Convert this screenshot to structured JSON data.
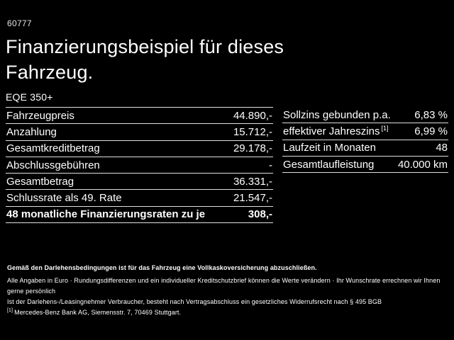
{
  "page": {
    "ref_number": "60777",
    "title_line1": "Finanzierungsbeispiel für dieses",
    "title_line2": "Fahrzeug.",
    "model": "EQE 350+"
  },
  "finance_table": {
    "rows": [
      {
        "label": "Fahrzeugpreis",
        "value": "44.890,-"
      },
      {
        "label": "Anzahlung",
        "value": "15.712,-"
      },
      {
        "label": "Gesamtkreditbetrag",
        "value": "29.178,-"
      },
      {
        "label": "Abschlussgebühren",
        "value": "-"
      },
      {
        "label": "Gesamtbetrag",
        "value": "36.331,-"
      },
      {
        "label": "Schlussrate als 49. Rate",
        "value": "21.547,-"
      },
      {
        "label": "48 monatliche Finanzierungsraten zu je",
        "value": "308,-"
      }
    ]
  },
  "conditions_table": {
    "rows": [
      {
        "label": "Sollzins gebunden p.a.",
        "sup": "",
        "value": "6,83 %"
      },
      {
        "label": "effektiver Jahreszins",
        "sup": "[1]",
        "value": "6,99 %"
      },
      {
        "label": "Laufzeit in Monaten",
        "sup": "",
        "value": "48"
      },
      {
        "label": "Gesamtlaufleistung",
        "sup": "",
        "value": "40.000 km"
      }
    ]
  },
  "footnotes": {
    "line1": "Gemäß den Darlehensbedingungen ist für das Fahrzeug eine Vollkaskoversicherung abzuschließen.",
    "line2": "Alle Angaben in Euro · Rundungsdifferenzen und ein individueller Kreditschutzbrief können die Werte verändern · Ihr Wunschrate errechnen wir Ihnen gerne persönlich",
    "line3": "Ist der Darlehens-/Leasingnehmer Verbraucher, besteht nach Vertragsabschluss ein gesetzliches Widerrufsrecht nach § 495 BGB",
    "ref_mark": "[1]",
    "line4": "Mercedes-Benz Bank AG, Siemensstr. 7, 70469 Stuttgart."
  },
  "colors": {
    "background": "#000000",
    "text": "#ffffff",
    "divider": "#e0e0e0"
  }
}
